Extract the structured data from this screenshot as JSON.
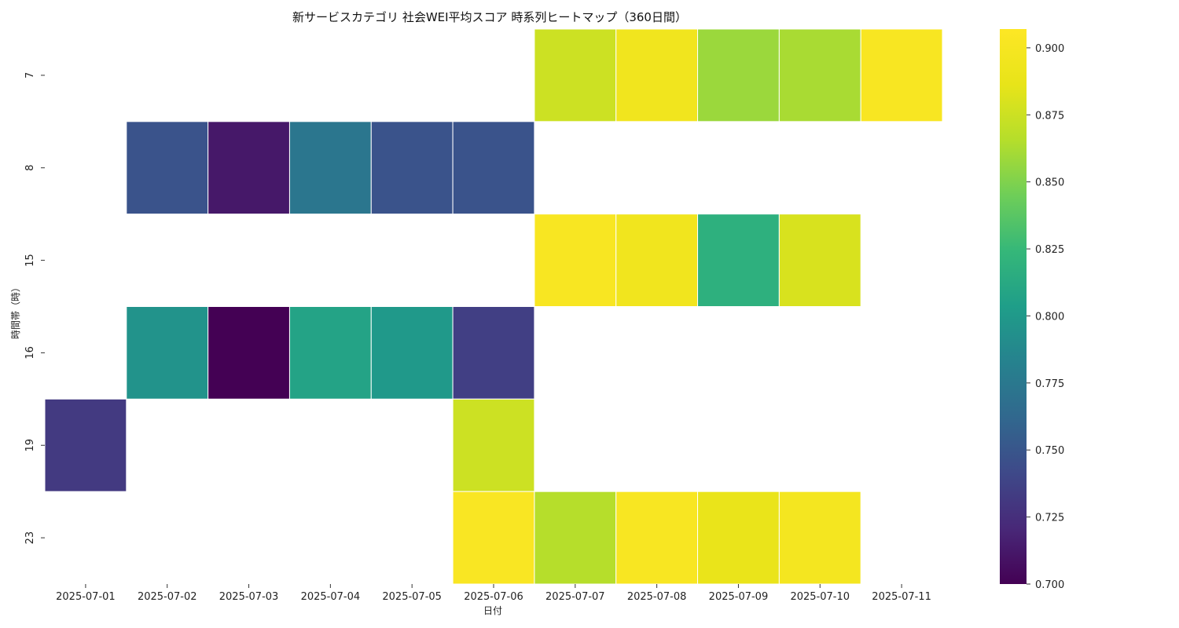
{
  "chart_data": {
    "type": "heatmap",
    "title": "新サービスカテゴリ 社会WEI平均スコア 時系列ヒートマップ（360日間）",
    "xlabel": "日付",
    "ylabel": "時間帯（時）",
    "x_categories": [
      "2025-07-01",
      "2025-07-02",
      "2025-07-03",
      "2025-07-04",
      "2025-07-05",
      "2025-07-06",
      "2025-07-07",
      "2025-07-08",
      "2025-07-09",
      "2025-07-10",
      "2025-07-11"
    ],
    "y_categories": [
      "7",
      "8",
      "15",
      "16",
      "19",
      "23"
    ],
    "values": [
      [
        null,
        null,
        null,
        null,
        null,
        null,
        0.875,
        0.895,
        0.858,
        0.862,
        0.902
      ],
      [
        null,
        0.748,
        0.712,
        0.773,
        0.748,
        0.748,
        null,
        null,
        null,
        null,
        null
      ],
      [
        null,
        null,
        null,
        null,
        null,
        null,
        0.902,
        0.895,
        0.818,
        0.88,
        null
      ],
      [
        null,
        0.795,
        0.7,
        0.808,
        0.8,
        0.735,
        null,
        null,
        null,
        null,
        null
      ],
      [
        0.732,
        null,
        null,
        null,
        null,
        0.875,
        null,
        null,
        null,
        null,
        null
      ],
      [
        null,
        null,
        null,
        null,
        null,
        0.903,
        0.866,
        0.902,
        0.888,
        0.898,
        null
      ]
    ],
    "colorbar": {
      "min": 0.7,
      "max": 0.907,
      "ticks": [
        "0.700",
        "0.725",
        "0.750",
        "0.775",
        "0.800",
        "0.825",
        "0.850",
        "0.875",
        "0.900"
      ],
      "colormap": "viridis"
    },
    "grid": false
  }
}
